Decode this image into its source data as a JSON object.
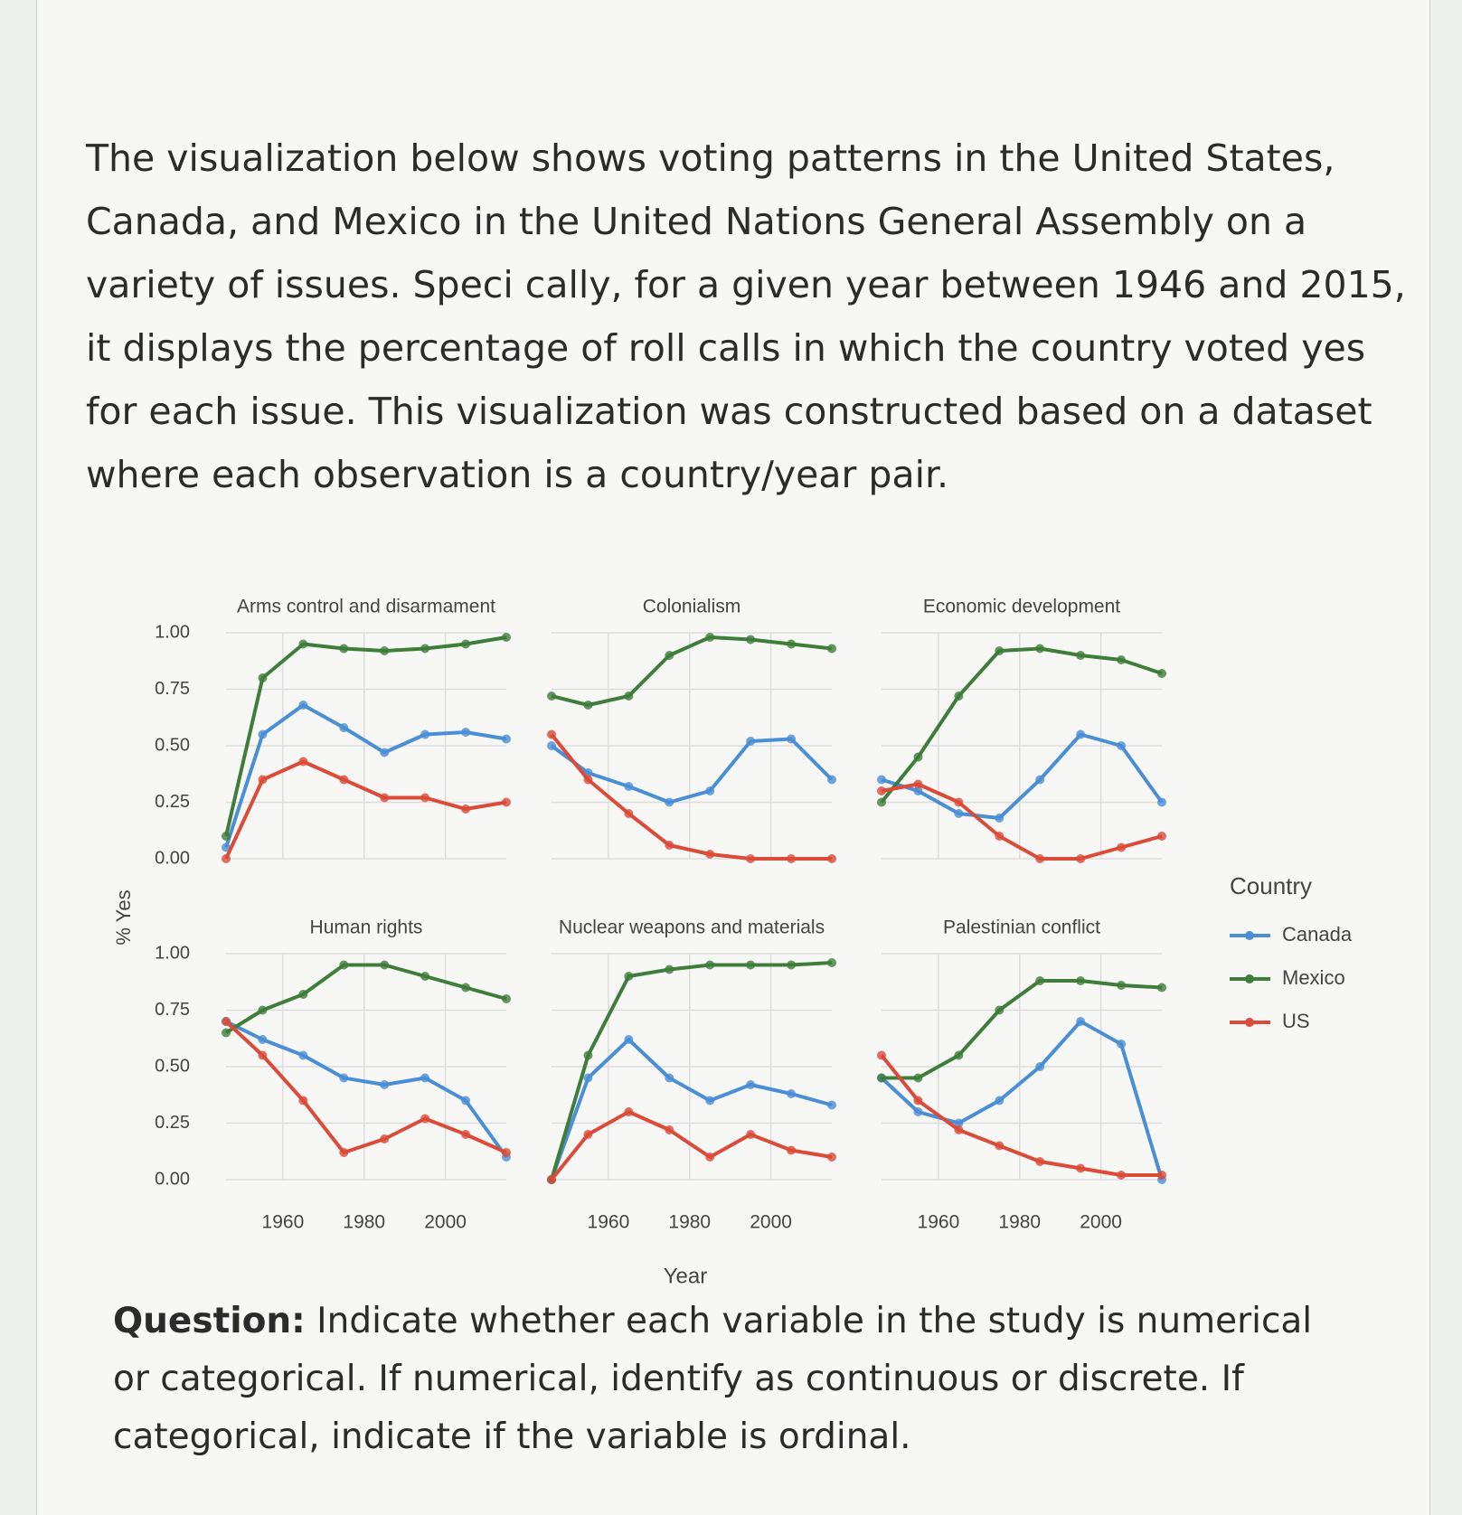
{
  "document": {
    "paragraph": "The visualization below shows voting patterns in the United States, Canada, and Mexico in the United Nations General Assembly on a variety of issues. Speci cally, for a given year between 1946 and 2015, it displays the percentage of roll calls in which the country voted yes for each issue. This visualization was constructed based on a dataset where each observation is a country/year pair.",
    "question_label": "Question:",
    "question": "Indicate whether each variable in the study is numerical or categorical. If numerical, identify as continuous or discrete. If categorical, indicate if the variable is ordinal."
  },
  "figure": {
    "y_label": "% Yes",
    "x_label": "Year",
    "legend_title": "Country"
  },
  "chart_data": [
    {
      "type": "line",
      "title": "Arms control and disarmament",
      "x": [
        1946,
        1955,
        1965,
        1975,
        1985,
        1995,
        2005,
        2015
      ],
      "series": [
        {
          "name": "Canada",
          "color": "#4a8fd6",
          "values": [
            0.05,
            0.55,
            0.68,
            0.58,
            0.47,
            0.55,
            0.56,
            0.53
          ]
        },
        {
          "name": "Mexico",
          "color": "#3f7d3a",
          "values": [
            0.1,
            0.8,
            0.95,
            0.93,
            0.92,
            0.93,
            0.95,
            0.98
          ]
        },
        {
          "name": "US",
          "color": "#dc4a38",
          "values": [
            0.0,
            0.35,
            0.43,
            0.35,
            0.27,
            0.27,
            0.22,
            0.25
          ]
        }
      ],
      "xlim": [
        1946,
        2015
      ],
      "xticks": [
        1960,
        1980,
        2000
      ],
      "ylim": [
        0,
        1
      ],
      "yticks": [
        {
          "value": 0,
          "label": "0.00"
        },
        {
          "value": 0.25,
          "label": "0.25"
        },
        {
          "value": 0.5,
          "label": "0.50"
        },
        {
          "value": 0.75,
          "label": "0.75"
        },
        {
          "value": 1,
          "label": "1.00"
        }
      ],
      "grid": true
    },
    {
      "type": "line",
      "title": "Colonialism",
      "x": [
        1946,
        1955,
        1965,
        1975,
        1985,
        1995,
        2005,
        2015
      ],
      "series": [
        {
          "name": "Canada",
          "color": "#4a8fd6",
          "values": [
            0.5,
            0.38,
            0.32,
            0.25,
            0.3,
            0.52,
            0.53,
            0.35
          ]
        },
        {
          "name": "Mexico",
          "color": "#3f7d3a",
          "values": [
            0.72,
            0.68,
            0.72,
            0.9,
            0.98,
            0.97,
            0.95,
            0.93
          ]
        },
        {
          "name": "US",
          "color": "#dc4a38",
          "values": [
            0.55,
            0.35,
            0.2,
            0.06,
            0.02,
            0.0,
            0.0,
            0.0
          ]
        }
      ],
      "xlim": [
        1946,
        2015
      ],
      "xticks": [
        1960,
        1980,
        2000
      ],
      "ylim": [
        0,
        1
      ],
      "yticks": [
        {
          "value": 0,
          "label": "0.00"
        },
        {
          "value": 0.25,
          "label": "0.25"
        },
        {
          "value": 0.5,
          "label": "0.50"
        },
        {
          "value": 0.75,
          "label": "0.75"
        },
        {
          "value": 1,
          "label": "1.00"
        }
      ],
      "grid": true
    },
    {
      "type": "line",
      "title": "Economic development",
      "x": [
        1946,
        1955,
        1965,
        1975,
        1985,
        1995,
        2005,
        2015
      ],
      "series": [
        {
          "name": "Canada",
          "color": "#4a8fd6",
          "values": [
            0.35,
            0.3,
            0.2,
            0.18,
            0.35,
            0.55,
            0.5,
            0.25
          ]
        },
        {
          "name": "Mexico",
          "color": "#3f7d3a",
          "values": [
            0.25,
            0.45,
            0.72,
            0.92,
            0.93,
            0.9,
            0.88,
            0.82
          ]
        },
        {
          "name": "US",
          "color": "#dc4a38",
          "values": [
            0.3,
            0.33,
            0.25,
            0.1,
            0.0,
            0.0,
            0.05,
            0.1
          ]
        }
      ],
      "xlim": [
        1946,
        2015
      ],
      "xticks": [
        1960,
        1980,
        2000
      ],
      "ylim": [
        0,
        1
      ],
      "yticks": [
        {
          "value": 0,
          "label": "0.00"
        },
        {
          "value": 0.25,
          "label": "0.25"
        },
        {
          "value": 0.5,
          "label": "0.50"
        },
        {
          "value": 0.75,
          "label": "0.75"
        },
        {
          "value": 1,
          "label": "1.00"
        }
      ],
      "grid": true
    },
    {
      "type": "line",
      "title": "Human rights",
      "x": [
        1946,
        1955,
        1965,
        1975,
        1985,
        1995,
        2005,
        2015
      ],
      "series": [
        {
          "name": "Canada",
          "color": "#4a8fd6",
          "values": [
            0.7,
            0.62,
            0.55,
            0.45,
            0.42,
            0.45,
            0.35,
            0.1
          ]
        },
        {
          "name": "Mexico",
          "color": "#3f7d3a",
          "values": [
            0.65,
            0.75,
            0.82,
            0.95,
            0.95,
            0.9,
            0.85,
            0.8
          ]
        },
        {
          "name": "US",
          "color": "#dc4a38",
          "values": [
            0.7,
            0.55,
            0.35,
            0.12,
            0.18,
            0.27,
            0.2,
            0.12
          ]
        }
      ],
      "xlim": [
        1946,
        2015
      ],
      "xticks": [
        1960,
        1980,
        2000
      ],
      "ylim": [
        0,
        1
      ],
      "yticks": [
        {
          "value": 0,
          "label": "0.00"
        },
        {
          "value": 0.25,
          "label": "0.25"
        },
        {
          "value": 0.5,
          "label": "0.50"
        },
        {
          "value": 0.75,
          "label": "0.75"
        },
        {
          "value": 1,
          "label": "1.00"
        }
      ],
      "grid": true
    },
    {
      "type": "line",
      "title": "Nuclear weapons and materials",
      "x": [
        1946,
        1955,
        1965,
        1975,
        1985,
        1995,
        2005,
        2015
      ],
      "series": [
        {
          "name": "Canada",
          "color": "#4a8fd6",
          "values": [
            0.0,
            0.45,
            0.62,
            0.45,
            0.35,
            0.42,
            0.38,
            0.33
          ]
        },
        {
          "name": "Mexico",
          "color": "#3f7d3a",
          "values": [
            0.0,
            0.55,
            0.9,
            0.93,
            0.95,
            0.95,
            0.95,
            0.96
          ]
        },
        {
          "name": "US",
          "color": "#dc4a38",
          "values": [
            0.0,
            0.2,
            0.3,
            0.22,
            0.1,
            0.2,
            0.13,
            0.1
          ]
        }
      ],
      "xlim": [
        1946,
        2015
      ],
      "xticks": [
        1960,
        1980,
        2000
      ],
      "ylim": [
        0,
        1
      ],
      "yticks": [
        {
          "value": 0,
          "label": "0.00"
        },
        {
          "value": 0.25,
          "label": "0.25"
        },
        {
          "value": 0.5,
          "label": "0.50"
        },
        {
          "value": 0.75,
          "label": "0.75"
        },
        {
          "value": 1,
          "label": "1.00"
        }
      ],
      "grid": true
    },
    {
      "type": "line",
      "title": "Palestinian conflict",
      "x": [
        1946,
        1955,
        1965,
        1975,
        1985,
        1995,
        2005,
        2015
      ],
      "series": [
        {
          "name": "Canada",
          "color": "#4a8fd6",
          "values": [
            0.45,
            0.3,
            0.25,
            0.35,
            0.5,
            0.7,
            0.6,
            0.0
          ]
        },
        {
          "name": "Mexico",
          "color": "#3f7d3a",
          "values": [
            0.45,
            0.45,
            0.55,
            0.75,
            0.88,
            0.88,
            0.86,
            0.85
          ]
        },
        {
          "name": "US",
          "color": "#dc4a38",
          "values": [
            0.55,
            0.35,
            0.22,
            0.15,
            0.08,
            0.05,
            0.02,
            0.02
          ]
        }
      ],
      "xlim": [
        1946,
        2015
      ],
      "xticks": [
        1960,
        1980,
        2000
      ],
      "ylim": [
        0,
        1
      ],
      "yticks": [
        {
          "value": 0,
          "label": "0.00"
        },
        {
          "value": 0.25,
          "label": "0.25"
        },
        {
          "value": 0.5,
          "label": "0.50"
        },
        {
          "value": 0.75,
          "label": "0.75"
        },
        {
          "value": 1,
          "label": "1.00"
        }
      ],
      "grid": true
    }
  ]
}
